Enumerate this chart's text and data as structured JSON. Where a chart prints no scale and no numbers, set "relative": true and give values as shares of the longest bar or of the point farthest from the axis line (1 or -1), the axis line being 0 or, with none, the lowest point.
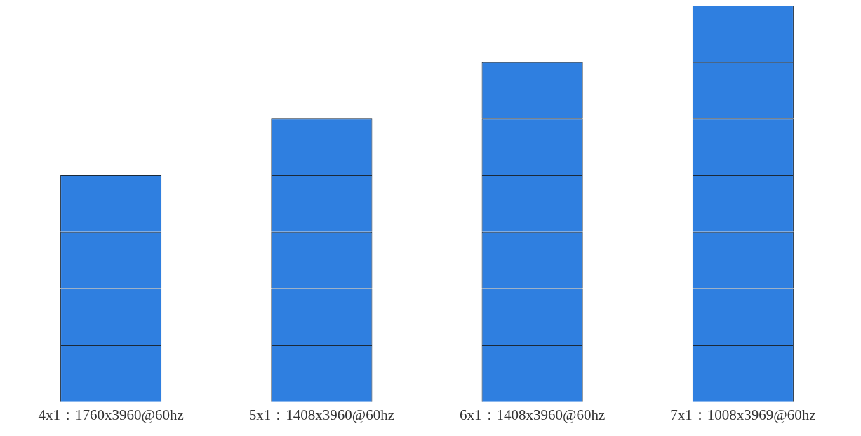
{
  "chart_data": {
    "type": "bar",
    "relative": true,
    "stacked": true,
    "legend": false,
    "grid": false,
    "categories": [
      "4x1：1760x3960@60hz",
      "5x1：1408x3960@60hz",
      "6x1：1408x3960@60hz",
      "7x1：1008x3969@60hz"
    ],
    "series": [
      {
        "color": "#2f7fe0",
        "values": [
          0.142857,
          0.142857,
          0.142857,
          0.142857
        ]
      },
      {
        "color": "#2f7fe0",
        "values": [
          0.142857,
          0.142857,
          0.142857,
          0.142857
        ]
      },
      {
        "color": "#2f7fe0",
        "values": [
          0.142857,
          0.142857,
          0.142857,
          0.142857
        ]
      },
      {
        "color": "#2f7fe0",
        "values": [
          0.142857,
          0.142857,
          0.142857,
          0.142857
        ]
      },
      {
        "color": "#2f7fe0",
        "values": [
          null,
          0.142857,
          0.142857,
          0.142857
        ]
      },
      {
        "color": "#2f7fe0",
        "values": [
          null,
          null,
          0.142857,
          0.142857
        ]
      },
      {
        "color": "#2f7fe0",
        "values": [
          null,
          null,
          null,
          0.142857
        ]
      }
    ]
  }
}
